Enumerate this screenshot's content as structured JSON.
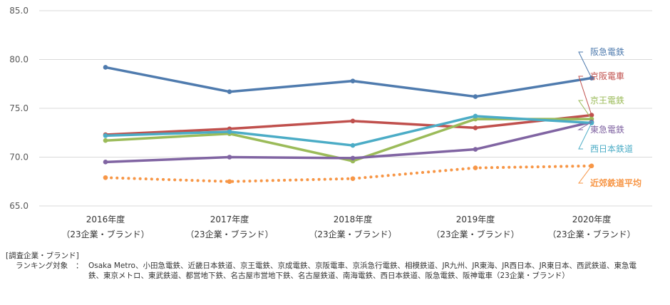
{
  "chart_data": {
    "type": "line",
    "title": "",
    "xlabel": "",
    "ylabel": "",
    "ylim": [
      65,
      85
    ],
    "yticks": [
      "65.0",
      "70.0",
      "75.0",
      "80.0",
      "85.0"
    ],
    "grid": true,
    "categories": [
      {
        "year": "2016年度",
        "sub": "（23企業・ブランド）"
      },
      {
        "year": "2017年度",
        "sub": "（23企業・ブランド）"
      },
      {
        "year": "2018年度",
        "sub": "（23企業・ブランド）"
      },
      {
        "year": "2019年度",
        "sub": "（23企業・ブランド）"
      },
      {
        "year": "2020年度",
        "sub": "（23企業・ブランド）"
      }
    ],
    "series": [
      {
        "name": "阪急電鉄",
        "color": "#4f7bae",
        "values": [
          79.2,
          76.7,
          77.8,
          76.2,
          78.1
        ],
        "dashed": false
      },
      {
        "name": "京阪電車",
        "color": "#c0504d",
        "values": [
          72.3,
          72.9,
          73.7,
          73.0,
          74.3
        ],
        "dashed": false
      },
      {
        "name": "京王電鉄",
        "color": "#9bbb59",
        "values": [
          71.7,
          72.4,
          69.6,
          73.9,
          73.9
        ],
        "dashed": false
      },
      {
        "name": "東急電鉄",
        "color": "#8064a2",
        "values": [
          69.5,
          70.0,
          69.9,
          70.8,
          73.6
        ],
        "dashed": false
      },
      {
        "name": "西日本鉄道",
        "color": "#4bacc6",
        "values": [
          72.2,
          72.6,
          71.2,
          74.2,
          73.5
        ],
        "dashed": false
      },
      {
        "name": "近郊鉄道平均",
        "color": "#f79646",
        "values": [
          67.9,
          67.5,
          67.8,
          68.9,
          69.1
        ],
        "dashed": true
      }
    ]
  },
  "notes": {
    "heading": "[調査企業・ブランド]",
    "label": "ランキング対象",
    "colon": "：",
    "list": "Osaka Metro、小田急電鉄、近畿日本鉄道、京王電鉄、京成電鉄、京阪電車、京浜急行電鉄、相模鉄道、JR九州、JR東海、JR西日本、JR東日本、西武鉄道、東急電鉄、東京メトロ、東武鉄道、都営地下鉄、名古屋市営地下鉄、名古屋鉄道、南海電鉄、西日本鉄道、阪急電鉄、阪神電車（23企業・ブランド）"
  }
}
